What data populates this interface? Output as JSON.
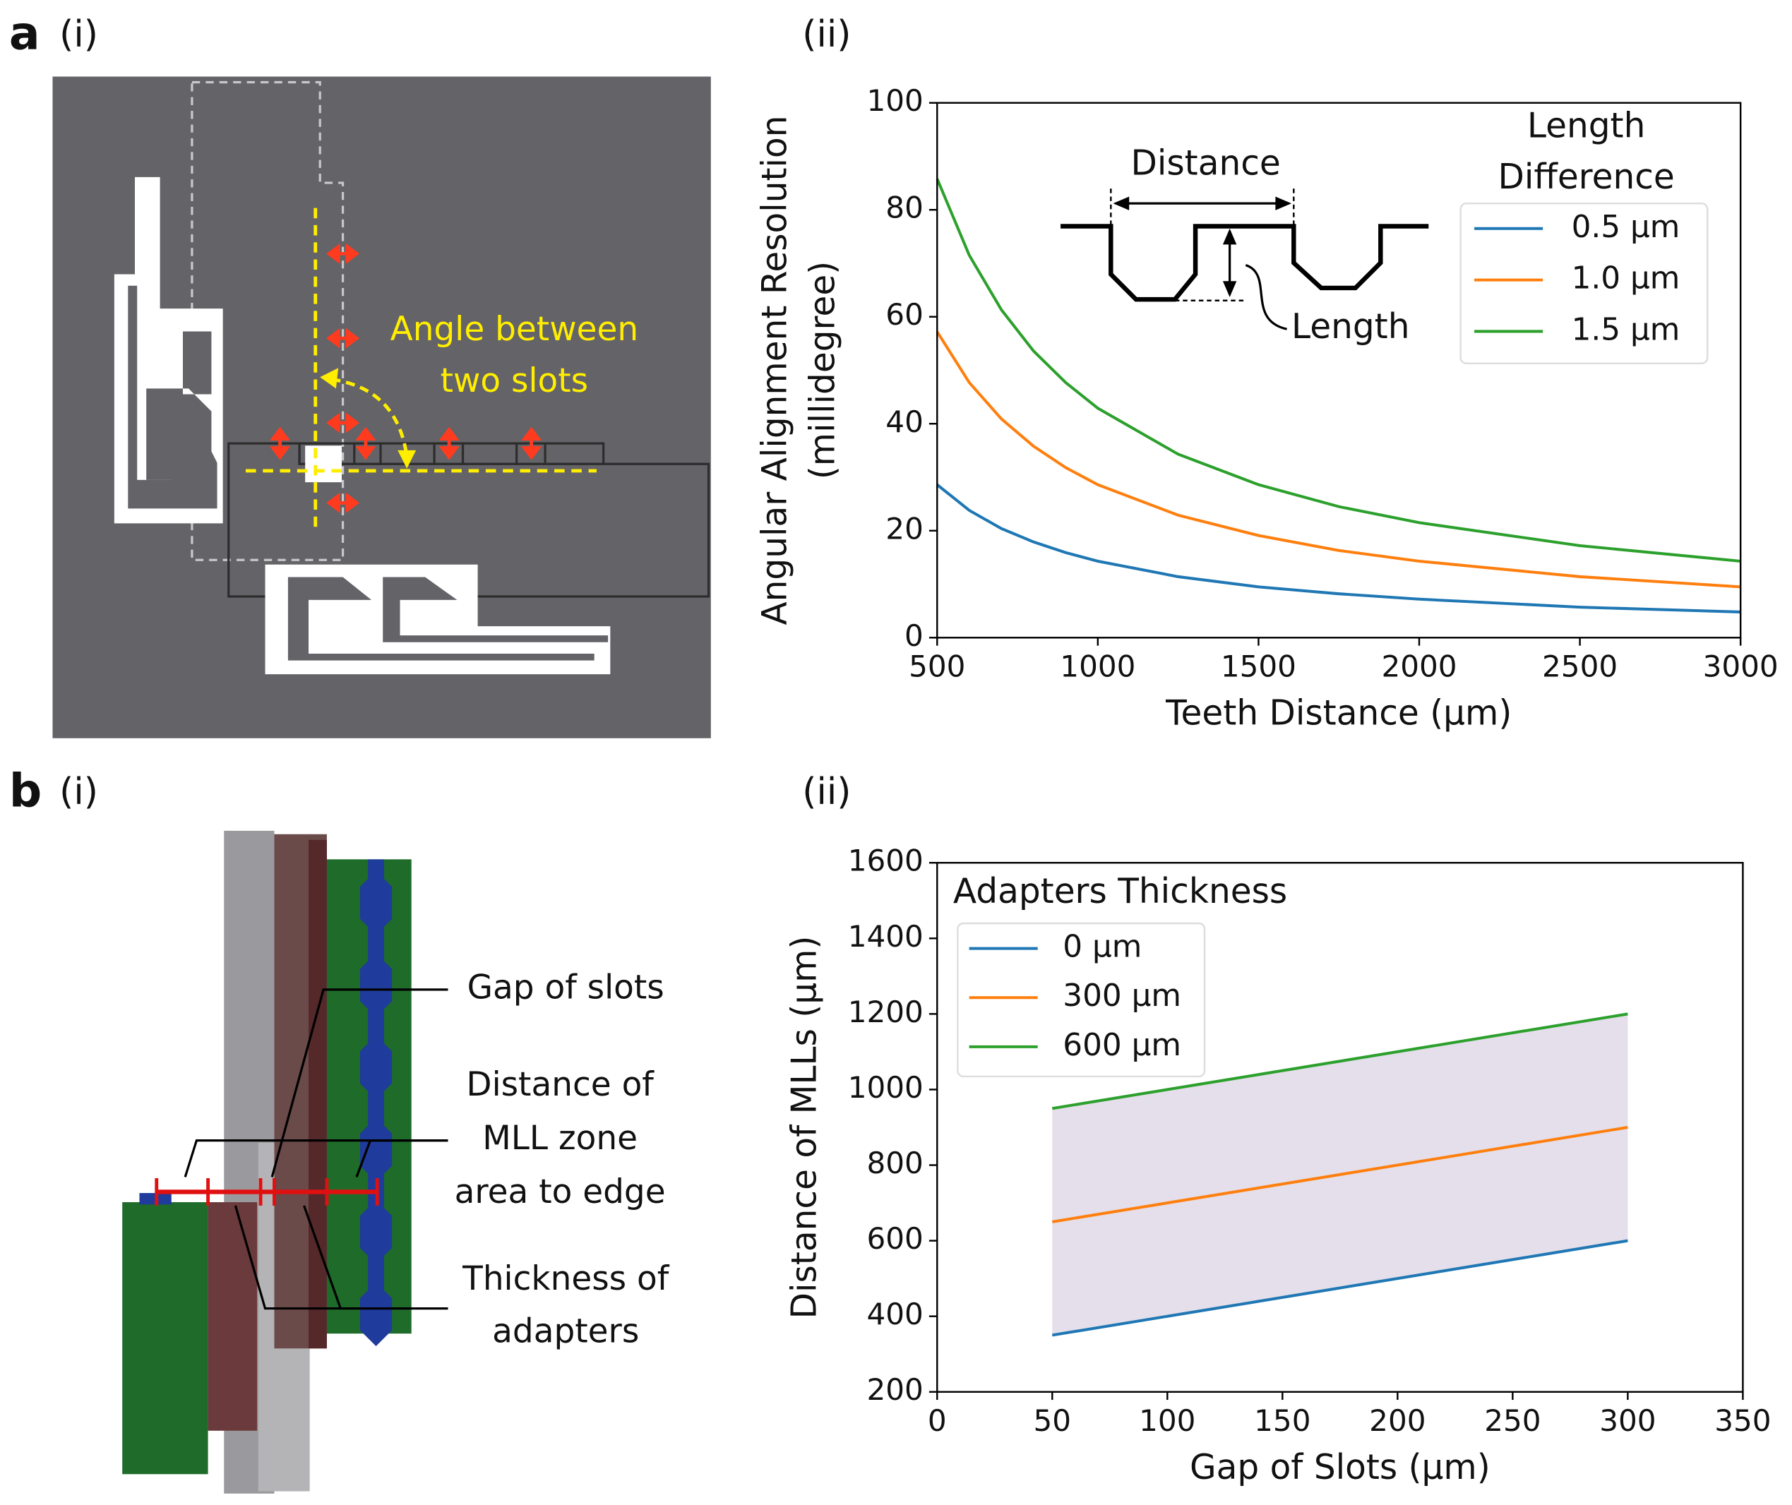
{
  "panel_labels": {
    "a": "a",
    "a_i": "(i)",
    "a_ii": "(ii)",
    "b": "b",
    "b_i": "(i)",
    "b_ii": "(ii)"
  },
  "diagram_a": {
    "annotation": [
      "Angle between",
      "two slots"
    ]
  },
  "diagram_b": {
    "labels": [
      "Gap of slots",
      "Distance of",
      "MLL zone",
      "area to edge",
      "Thickness of",
      "adapters"
    ]
  },
  "chart_data": [
    {
      "type": "line",
      "xlabel": "Teeth Distance (µm)",
      "ylabel": [
        "Angular Alignment Resolution",
        "(millidegree)"
      ],
      "x": [
        500,
        600,
        700,
        800,
        900,
        1000,
        1250,
        1500,
        1750,
        2000,
        2500,
        3000
      ],
      "series": [
        {
          "name": "0.5 µm",
          "color": "#1f77b4",
          "values": [
            28.6,
            23.8,
            20.4,
            17.9,
            15.9,
            14.3,
            11.4,
            9.5,
            8.2,
            7.2,
            5.7,
            4.8
          ]
        },
        {
          "name": "1.0 µm",
          "color": "#ff7f0e",
          "values": [
            57.2,
            47.7,
            40.9,
            35.8,
            31.8,
            28.6,
            22.9,
            19.1,
            16.3,
            14.3,
            11.4,
            9.5
          ]
        },
        {
          "name": "1.5 µm",
          "color": "#2ca02c",
          "values": [
            85.8,
            71.5,
            61.3,
            53.6,
            47.7,
            42.9,
            34.3,
            28.6,
            24.5,
            21.5,
            17.2,
            14.3
          ]
        }
      ],
      "legend_title": [
        "Length",
        "Difference"
      ],
      "legend": "upper right",
      "inset_labels": [
        "Distance",
        "Length"
      ],
      "xlim": [
        500,
        3000
      ],
      "xticks": [
        500,
        1000,
        1500,
        2000,
        2500,
        3000
      ],
      "ylim": [
        0,
        100
      ],
      "yticks": [
        0,
        20,
        40,
        60,
        80,
        100
      ],
      "grid": false
    },
    {
      "type": "line",
      "xlabel": "Gap of Slots (µm)",
      "ylabel": [
        "Distance of MLLs (µm)"
      ],
      "x": [
        50,
        300
      ],
      "series": [
        {
          "name": "0 µm",
          "color": "#1f77b4",
          "values": [
            350,
            600
          ]
        },
        {
          "name": "300 µm",
          "color": "#ff7f0e",
          "values": [
            650,
            900
          ]
        },
        {
          "name": "600 µm",
          "color": "#2ca02c",
          "values": [
            950,
            1200
          ]
        }
      ],
      "legend_title": [
        "Adapters Thickness"
      ],
      "legend": "upper left",
      "fill_color": "#e4dfea",
      "xlim": [
        0,
        350
      ],
      "xticks": [
        0,
        50,
        100,
        150,
        200,
        250,
        300,
        350
      ],
      "ylim": [
        200,
        1600
      ],
      "yticks": [
        200,
        400,
        600,
        800,
        1000,
        1200,
        1400,
        1600
      ],
      "grid": false
    }
  ]
}
